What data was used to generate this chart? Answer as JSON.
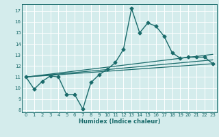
{
  "xlabel": "Humidex (Indice chaleur)",
  "bg_color": "#d4ecec",
  "line_color": "#1a6b6b",
  "grid_color": "#ffffff",
  "xlim": [
    -0.5,
    23.5
  ],
  "ylim": [
    7.8,
    17.6
  ],
  "yticks": [
    8,
    9,
    10,
    11,
    12,
    13,
    14,
    15,
    16,
    17
  ],
  "xticks": [
    0,
    1,
    2,
    3,
    4,
    5,
    6,
    7,
    8,
    9,
    10,
    11,
    12,
    13,
    14,
    15,
    16,
    17,
    18,
    19,
    20,
    21,
    22,
    23
  ],
  "series": [
    {
      "x": [
        0,
        1,
        2,
        3,
        4,
        5,
        6,
        7,
        8,
        9,
        10,
        11,
        12,
        13,
        14,
        15,
        16,
        17,
        18,
        19,
        20,
        21,
        22,
        23
      ],
      "y": [
        11.0,
        9.9,
        10.6,
        11.1,
        11.0,
        9.4,
        9.4,
        8.1,
        10.5,
        11.2,
        11.7,
        12.3,
        13.5,
        17.2,
        15.0,
        15.9,
        15.6,
        14.7,
        13.2,
        12.7,
        12.8,
        12.8,
        12.8,
        12.2
      ],
      "marker": "D",
      "markersize": 2.5,
      "linewidth": 1.0
    },
    {
      "x": [
        0,
        23
      ],
      "y": [
        11.0,
        12.2
      ],
      "marker": null,
      "linewidth": 0.9
    },
    {
      "x": [
        0,
        23
      ],
      "y": [
        11.0,
        12.55
      ],
      "marker": null,
      "linewidth": 0.9
    },
    {
      "x": [
        0,
        23
      ],
      "y": [
        11.0,
        13.05
      ],
      "marker": null,
      "linewidth": 0.9
    }
  ]
}
